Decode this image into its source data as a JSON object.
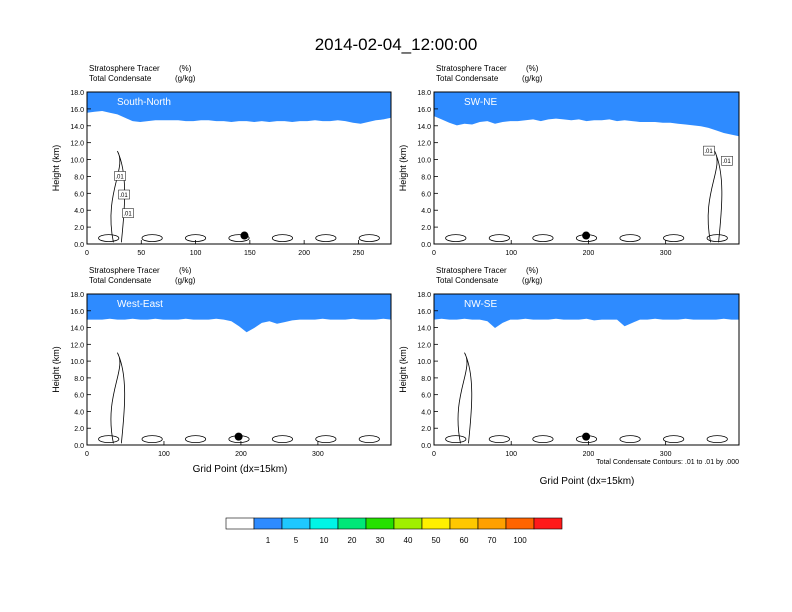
{
  "title": "2014-02-04_12:00:00",
  "field_label_1": "Stratosphere Tracer",
  "field_unit_1": "(%)",
  "field_label_2": "Total Condensate",
  "field_unit_2": "(g/kg)",
  "ylabel": "Height (km)",
  "xlabel": "Grid Point (dx=15km)",
  "contour_note": "Total Condensate Contours: .01 to .01 by .000",
  "colorbar": {
    "colors": [
      "#ffffff",
      "#2e8bff",
      "#1ec8ff",
      "#00f5e6",
      "#00e878",
      "#26e000",
      "#a0f000",
      "#fff000",
      "#ffc800",
      "#ffa000",
      "#ff6400",
      "#ff1a1a"
    ],
    "labels": [
      "1",
      "5",
      "10",
      "20",
      "30",
      "40",
      "50",
      "60",
      "70",
      "100"
    ]
  },
  "chart_data": [
    {
      "type": "heatmap",
      "panel": "South-North",
      "label": "South-North",
      "xlim": [
        0,
        280
      ],
      "ylim": [
        0,
        18
      ],
      "xticks": [
        "0",
        "50",
        "100",
        "150",
        "200",
        "250"
      ],
      "xtick_values": [
        0,
        50,
        100,
        150,
        200,
        250
      ],
      "yticks": [
        "0.0",
        "2.0",
        "4.0",
        "6.0",
        "8.0",
        "10.0",
        "12.0",
        "14.0",
        "16.0",
        "18.0"
      ],
      "tracer_base_km": [
        15.6,
        15.7,
        15.8,
        15.6,
        15.4,
        15.0,
        14.6,
        14.5,
        14.6,
        14.7,
        14.7,
        14.7,
        14.7,
        14.6,
        14.6,
        14.7,
        14.7,
        14.6,
        14.6,
        14.5,
        14.6,
        14.6,
        14.5,
        14.6,
        14.5,
        14.6,
        14.6,
        14.5,
        14.6,
        14.6,
        14.7,
        14.6,
        14.6,
        14.7,
        14.6,
        14.4,
        14.3,
        14.5,
        14.7,
        14.8,
        15.0
      ],
      "contour_labels": [
        ".01",
        ".01",
        ".01"
      ],
      "marker_x": 145,
      "marker_y_km": 1.0
    },
    {
      "type": "heatmap",
      "panel": "SW-NE",
      "label": "SW-NE",
      "xlim": [
        0,
        395
      ],
      "ylim": [
        0,
        18
      ],
      "xticks": [
        "0",
        "100",
        "200",
        "300"
      ],
      "xtick_values": [
        0,
        100,
        200,
        300
      ],
      "yticks": [
        "0.0",
        "2.0",
        "4.0",
        "6.0",
        "8.0",
        "10.0",
        "12.0",
        "14.0",
        "16.0",
        "18.0"
      ],
      "tracer_base_km": [
        15.2,
        14.8,
        14.4,
        14.1,
        14.3,
        14.2,
        14.5,
        14.6,
        14.3,
        14.5,
        14.6,
        14.6,
        14.7,
        14.8,
        14.6,
        14.8,
        14.9,
        14.8,
        14.7,
        14.8,
        14.6,
        14.7,
        14.7,
        14.8,
        14.6,
        14.7,
        14.6,
        14.5,
        14.5,
        14.5,
        14.4,
        14.4,
        14.3,
        14.2,
        14.1,
        14.0,
        13.8,
        13.5,
        13.2,
        13.0,
        12.8
      ],
      "contour_labels": [
        ".01",
        ".01"
      ],
      "marker_x": 197,
      "marker_y_km": 1.0
    },
    {
      "type": "heatmap",
      "panel": "West-East",
      "label": "West-East",
      "xlim": [
        0,
        395
      ],
      "ylim": [
        0,
        18
      ],
      "xticks": [
        "0",
        "100",
        "200",
        "300"
      ],
      "xtick_values": [
        0,
        100,
        200,
        300
      ],
      "yticks": [
        "0.0",
        "2.0",
        "4.0",
        "6.0",
        "8.0",
        "10.0",
        "12.0",
        "14.0",
        "16.0",
        "18.0"
      ],
      "tracer_base_km": [
        15.0,
        15.0,
        15.0,
        15.1,
        15.0,
        15.0,
        15.1,
        15.0,
        15.0,
        15.1,
        15.0,
        15.0,
        15.0,
        15.1,
        15.0,
        15.0,
        15.0,
        15.1,
        15.0,
        14.8,
        14.2,
        13.5,
        14.0,
        14.6,
        14.8,
        14.5,
        14.7,
        14.9,
        15.0,
        15.0,
        15.0,
        15.1,
        15.0,
        15.0,
        15.0,
        15.1,
        15.0,
        15.0,
        15.0,
        15.1,
        15.0
      ],
      "contour_labels": [],
      "marker_x": 197,
      "marker_y_km": 1.0
    },
    {
      "type": "heatmap",
      "panel": "NW-SE",
      "label": "NW-SE",
      "xlim": [
        0,
        395
      ],
      "ylim": [
        0,
        18
      ],
      "xticks": [
        "0",
        "100",
        "200",
        "300"
      ],
      "xtick_values": [
        0,
        100,
        200,
        300
      ],
      "yticks": [
        "0.0",
        "2.0",
        "4.0",
        "6.0",
        "8.0",
        "10.0",
        "12.0",
        "14.0",
        "16.0",
        "18.0"
      ],
      "tracer_base_km": [
        15.0,
        15.1,
        15.0,
        15.0,
        15.1,
        15.0,
        15.0,
        14.8,
        14.0,
        14.6,
        15.0,
        15.0,
        15.1,
        15.0,
        15.0,
        15.0,
        15.1,
        15.0,
        15.0,
        15.0,
        15.1,
        14.9,
        15.0,
        15.0,
        15.0,
        14.2,
        14.6,
        15.0,
        15.0,
        15.1,
        15.0,
        15.0,
        15.0,
        15.1,
        15.0,
        15.0,
        15.0,
        15.0,
        15.1,
        15.0,
        15.0
      ],
      "contour_labels": [],
      "marker_x": 197,
      "marker_y_km": 1.0
    }
  ]
}
